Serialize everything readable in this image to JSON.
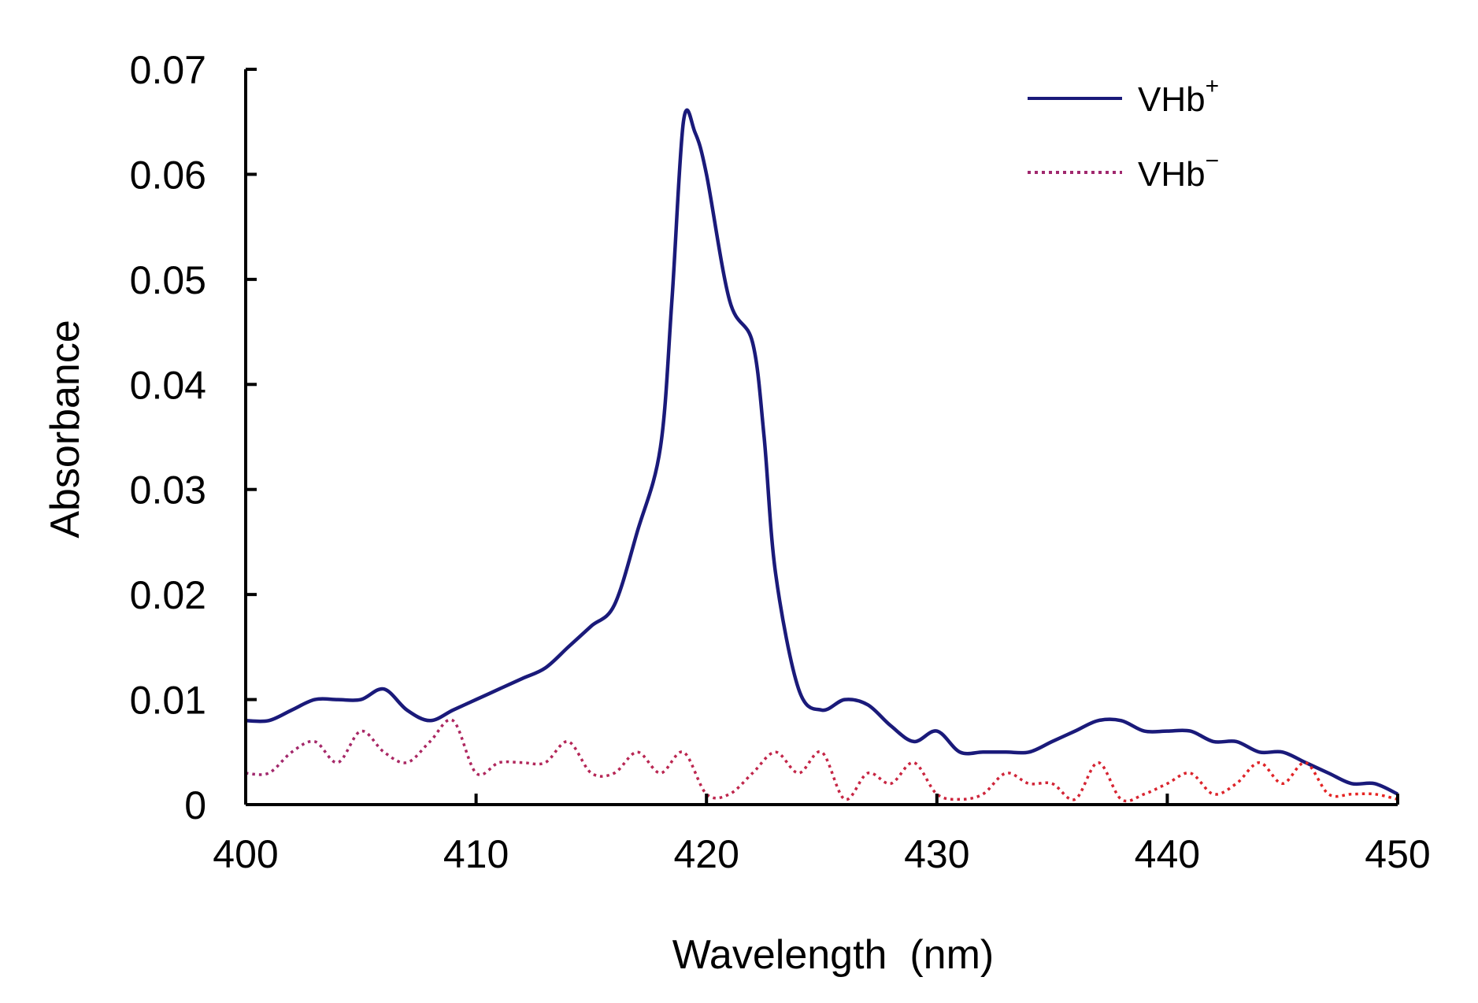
{
  "chart_data": {
    "type": "line",
    "title": "",
    "xlabel": "Wavelength  (nm)",
    "ylabel": "Absorbance",
    "xlim": [
      400,
      450
    ],
    "ylim": [
      0,
      0.07
    ],
    "x_ticks": [
      400,
      410,
      420,
      430,
      440,
      450
    ],
    "x_tick_labels": [
      "400",
      "410",
      "420",
      "430",
      "440",
      "450"
    ],
    "y_ticks": [
      0,
      0.01,
      0.02,
      0.03,
      0.04,
      0.05,
      0.06,
      0.07
    ],
    "y_tick_labels": [
      "0",
      "0.01",
      "0.02",
      "0.03",
      "0.04",
      "0.05",
      "0.06",
      "0.07"
    ],
    "grid": false,
    "legend_position": "top-right",
    "series": [
      {
        "name": "VHb",
        "name_sup": "+",
        "color": "#1a1a7a",
        "style": "solid",
        "x": [
          400,
          401,
          402,
          403,
          404,
          405,
          406,
          407,
          408,
          409,
          410,
          411,
          412,
          413,
          414,
          415,
          416,
          417,
          418,
          418.5,
          419,
          419.5,
          420,
          421,
          422,
          422.5,
          423,
          424,
          425,
          426,
          427,
          428,
          429,
          430,
          431,
          432,
          433,
          434,
          435,
          436,
          437,
          438,
          439,
          440,
          441,
          442,
          443,
          444,
          445,
          446,
          447,
          448,
          449,
          450
        ],
        "values": [
          0.008,
          0.008,
          0.009,
          0.01,
          0.01,
          0.01,
          0.011,
          0.009,
          0.008,
          0.009,
          0.01,
          0.011,
          0.012,
          0.013,
          0.015,
          0.017,
          0.019,
          0.026,
          0.034,
          0.048,
          0.065,
          0.064,
          0.06,
          0.048,
          0.044,
          0.035,
          0.022,
          0.011,
          0.009,
          0.01,
          0.0095,
          0.0075,
          0.006,
          0.007,
          0.005,
          0.005,
          0.005,
          0.005,
          0.006,
          0.007,
          0.008,
          0.008,
          0.007,
          0.007,
          0.007,
          0.006,
          0.006,
          0.005,
          0.005,
          0.004,
          0.003,
          0.002,
          0.002,
          0.001
        ]
      },
      {
        "name": "VHb",
        "name_sup": "−",
        "color": "#a0286e",
        "color_end": "#e8231e",
        "style": "dotted",
        "x": [
          400,
          401,
          402,
          403,
          404,
          405,
          406,
          407,
          408,
          409,
          410,
          411,
          412,
          413,
          414,
          415,
          416,
          417,
          418,
          419,
          420,
          421,
          422,
          423,
          424,
          425,
          426,
          427,
          428,
          429,
          430,
          431,
          432,
          433,
          434,
          435,
          436,
          437,
          438,
          439,
          440,
          441,
          442,
          443,
          444,
          445,
          446,
          447,
          448,
          449,
          450
        ],
        "values": [
          0.003,
          0.003,
          0.005,
          0.006,
          0.004,
          0.007,
          0.005,
          0.004,
          0.006,
          0.008,
          0.003,
          0.004,
          0.004,
          0.004,
          0.006,
          0.003,
          0.003,
          0.005,
          0.003,
          0.005,
          0.001,
          0.001,
          0.003,
          0.005,
          0.003,
          0.005,
          0.0005,
          0.003,
          0.002,
          0.004,
          0.001,
          0.0005,
          0.001,
          0.003,
          0.002,
          0.002,
          0.0005,
          0.004,
          0.0005,
          0.001,
          0.002,
          0.003,
          0.001,
          0.002,
          0.004,
          0.002,
          0.004,
          0.001,
          0.001,
          0.001,
          0.0005
        ]
      }
    ]
  }
}
